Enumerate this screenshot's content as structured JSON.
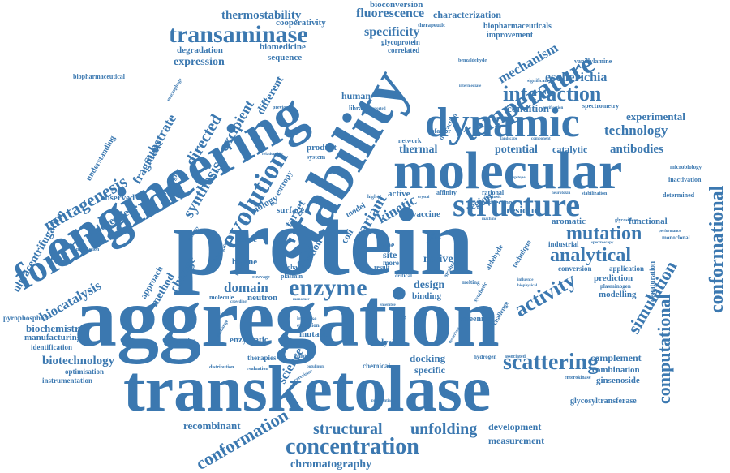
{
  "color": "#3b78b0",
  "words": {
    "protein": "protein",
    "aggregation": "aggregation",
    "transketolase": "transketolase",
    "engineering": "engineering",
    "stability": "stability",
    "molecular": "molecular",
    "formulation": "formulation",
    "dynamic": "dynamic",
    "structure": "structure",
    "temperature": "temperature",
    "enzyme": "enzyme",
    "evolution": "evolution",
    "transaminase": "transaminase",
    "concentration": "concentration",
    "mutagenesis": "mutagenesis",
    "interaction": "interaction",
    "analytical": "analytical",
    "mutation": "mutation",
    "conformational": "conformational",
    "computational": "computational",
    "simulation": "simulation",
    "activity": "activity",
    "scattering": "scattering",
    "structural": "structural",
    "unfolding": "unfolding",
    "conformation": "conformation",
    "chromatography": "chromatography",
    "biocatalysis": "biocatalysis",
    "ultracentrifugation": "ultracentrifugation",
    "biotechnology": "biotechnology",
    "thermostability": "thermostability",
    "fluorescence": "fluorescence",
    "specificity": "specificity",
    "characterization": "characterization",
    "bioconversion": "bioconversion",
    "cooperativity": "cooperativity",
    "mechanism": "mechanism",
    "technology": "technology",
    "antibodies": "antibodies",
    "escherichia": "escherichia",
    "condition": "condition",
    "experimental": "experimental",
    "kinetic": "kinetic",
    "thermal": "thermal",
    "potential": "potential",
    "catalytic": "catalytic",
    "synthesis": "synthesis",
    "directed": "directed",
    "excipient": "excipient",
    "substrate": "substrate",
    "fragment": "fragment",
    "different": "different",
    "expression": "expression",
    "degradation": "degradation",
    "biomedicine": "biomedicine",
    "sequence": "sequence",
    "domain": "domain",
    "design": "design",
    "recombinant": "recombinant",
    "development": "development",
    "measurement": "measurement",
    "docking": "docking",
    "specific": "specific",
    "complement": "complement",
    "combination": "combination",
    "ginsenoside": "ginsenoside",
    "glycosyltransferase": "glycosyltransferase",
    "modelling": "modelling",
    "prediction": "prediction",
    "application": "application",
    "conversion": "conversion",
    "functional": "functional",
    "aromatic": "aromatic",
    "residue": "residue",
    "region": "region",
    "vaccine": "vaccine",
    "active": "active",
    "surface": "surface",
    "biology": "biology",
    "observed": "observed",
    "dependent": "dependent",
    "change": "change",
    "method": "method",
    "approach": "approach",
    "biochemistry": "biochemistry",
    "manufacturing": "manufacturing",
    "identification": "identification",
    "optimisation": "optimisation",
    "instrumentation": "instrumentation",
    "pyrophosphate": "pyrophosphate",
    "neutron": "neutron",
    "molecule": "molecule",
    "properties": "properties",
    "enzymatic": "enzymatic",
    "mutant": "mutant",
    "analysis": "analysis",
    "chemical": "chemical",
    "therapies": "therapies",
    "evaluation": "evaluation",
    "science": "science",
    "binding": "binding",
    "screening": "screening",
    "exclusion": "exclusion",
    "increase": "increase",
    "bovine": "bovine",
    "single": "single",
    "global": "global",
    "plasmin": "plasmin",
    "solution": "solution",
    "variant": "variant",
    "native": "native",
    "site": "site",
    "type": "type",
    "more": "more",
    "coli": "coli",
    "human": "human",
    "libraries": "libraries",
    "network": "network",
    "cofactor": "cofactor",
    "product": "product",
    "system": "system",
    "entropy": "entropy",
    "model": "model",
    "target": "target",
    "affinity": "affinity",
    "rational": "rational",
    "selection": "selection",
    "intrinsic": "intrinsic",
    "aldehyde": "aldehyde",
    "technique": "technique",
    "industrial": "industrial",
    "biopharmaceuticals": "biopharmaceuticals",
    "biopharmaceutical": "biopharmaceutical",
    "improvement": "improvement",
    "vanillylamine": "vanillylamine",
    "spectrometry": "spectrometry",
    "inactivation": "inactivation",
    "microbiology": "microbiology",
    "stabilization": "stabilization",
    "determined": "determined",
    "monoclonal": "monoclonal",
    "plasminogen": "plasminogen",
    "denaturation": "denaturation",
    "glycoprotein": "glycoprotein",
    "correlated": "correlated",
    "therapeutic": "therapeutic",
    "benzaldehyde": "benzaldehyde",
    "understanding": "understanding",
    "strategies": "strategies",
    "higher": "higher",
    "hydrogen": "hydrogen",
    "associated": "associated",
    "melting": "melting",
    "synthetic": "synthetic",
    "challenge": "challenge",
    "diffraction": "diffraction",
    "result": "result",
    "critical": "critical",
    "buffer": "buffer",
    "alcohol": "alcohol",
    "research": "research",
    "ensemble": "ensemble",
    "monomer": "monomer",
    "inhibition": "inhibition",
    "cerevisiae": "cerevisiae",
    "distribution": "distribution",
    "exchange": "exchange",
    "interest": "interest",
    "cleavage": "cleavage",
    "production": "production",
    "flexibility": "flexibility",
    "biological": "biological",
    "function": "function",
    "structures": "structures",
    "previous": "previous",
    "relationship": "relationship",
    "enterokinase": "enterokinase",
    "biophysical": "biophysical",
    "influence": "influence",
    "purification": "purification",
    "landscape": "landscape",
    "component": "component",
    "significant": "significant",
    "intermediate": "intermediate",
    "macrophage": "macrophage",
    "reported": "reported",
    "epitope": "epitope",
    "neurotoxin": "neurotoxin",
    "glycosidase": "glycosidase",
    "spectroscopy": "spectroscopy",
    "performance": "performance",
    "chirality": "chirality",
    "deuterium": "deuterium",
    "crowding": "crowding",
    "preferential": "preferential",
    "machine": "machine",
    "flexible": "flexible",
    "botulinum": "botulinum",
    "calorimetry": "calorimetry",
    "technologies": "technologies",
    "simulations": "simulations",
    "fusion": "fusion",
    "population": "population",
    "crystal": "crystal"
  }
}
